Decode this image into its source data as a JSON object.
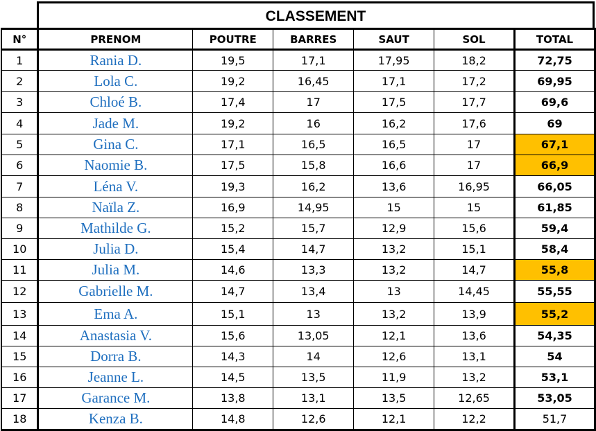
{
  "title": "CLASSEMENT",
  "headers": [
    "N°",
    "PRENOM",
    "POUTRE",
    "BARRES",
    "SAUT",
    "SOL",
    "TOTAL"
  ],
  "highlight_color": "#ffc000",
  "rows": [
    {
      "n": "1",
      "name": "Rania D.",
      "poutre": "19,5",
      "barres": "17,1",
      "saut": "17,95",
      "sol": "18,2",
      "total": "72,75",
      "highlight": false
    },
    {
      "n": "2",
      "name": "Lola C.",
      "poutre": "19,2",
      "barres": "16,45",
      "saut": "17,1",
      "sol": "17,2",
      "total": "69,95",
      "highlight": false
    },
    {
      "n": "3",
      "name": "Chloé B.",
      "poutre": "17,4",
      "barres": "17",
      "saut": "17,5",
      "sol": "17,7",
      "total": "69,6",
      "highlight": false
    },
    {
      "n": "4",
      "name": "Jade M.",
      "poutre": "19,2",
      "barres": "16",
      "saut": "16,2",
      "sol": "17,6",
      "total": "69",
      "highlight": false
    },
    {
      "n": "5",
      "name": "Gina C.",
      "poutre": "17,1",
      "barres": "16,5",
      "saut": "16,5",
      "sol": "17",
      "total": "67,1",
      "highlight": true
    },
    {
      "n": "6",
      "name": "Naomie B.",
      "poutre": "17,5",
      "barres": "15,8",
      "saut": "16,6",
      "sol": "17",
      "total": "66,9",
      "highlight": true
    },
    {
      "n": "7",
      "name": "Léna V.",
      "poutre": "19,3",
      "barres": "16,2",
      "saut": "13,6",
      "sol": "16,95",
      "total": "66,05",
      "highlight": false
    },
    {
      "n": "8",
      "name": "Naïla Z.",
      "poutre": "16,9",
      "barres": "14,95",
      "saut": "15",
      "sol": "15",
      "total": "61,85",
      "highlight": false
    },
    {
      "n": "9",
      "name": "Mathilde G.",
      "poutre": "15,2",
      "barres": "15,7",
      "saut": "12,9",
      "sol": "15,6",
      "total": "59,4",
      "highlight": false
    },
    {
      "n": "10",
      "name": "Julia D.",
      "poutre": "15,4",
      "barres": "14,7",
      "saut": "13,2",
      "sol": "15,1",
      "total": "58,4",
      "highlight": false
    },
    {
      "n": "11",
      "name": "Julia M.",
      "poutre": "14,6",
      "barres": "13,3",
      "saut": "13,2",
      "sol": "14,7",
      "total": "55,8",
      "highlight": true
    },
    {
      "n": "12",
      "name": "Gabrielle M.",
      "poutre": "14,7",
      "barres": "13,4",
      "saut": "13",
      "sol": "14,45",
      "total": "55,55",
      "highlight": false
    },
    {
      "n": "13",
      "name": "Ema A.",
      "poutre": "15,1",
      "barres": "13",
      "saut": "13,2",
      "sol": "13,9",
      "total": "55,2",
      "highlight": true
    },
    {
      "n": "14",
      "name": "Anastasia V.",
      "poutre": "15,6",
      "barres": "13,05",
      "saut": "12,1",
      "sol": "13,6",
      "total": "54,35",
      "highlight": false
    },
    {
      "n": "15",
      "name": "Dorra B.",
      "poutre": "14,3",
      "barres": "14",
      "saut": "12,6",
      "sol": "13,1",
      "total": "54",
      "highlight": false
    },
    {
      "n": "16",
      "name": "Jeanne L.",
      "poutre": "14,5",
      "barres": "13,5",
      "saut": "11,9",
      "sol": "13,2",
      "total": "53,1",
      "highlight": false
    },
    {
      "n": "17",
      "name": "Garance M.",
      "poutre": "13,8",
      "barres": "13,1",
      "saut": "13,5",
      "sol": "12,65",
      "total": "53,05",
      "highlight": false
    },
    {
      "n": "18",
      "name": "Kenza B.",
      "poutre": "14,8",
      "barres": "12,6",
      "saut": "12,1",
      "sol": "12,2",
      "total": "51,7",
      "highlight": false,
      "plain": true
    }
  ]
}
